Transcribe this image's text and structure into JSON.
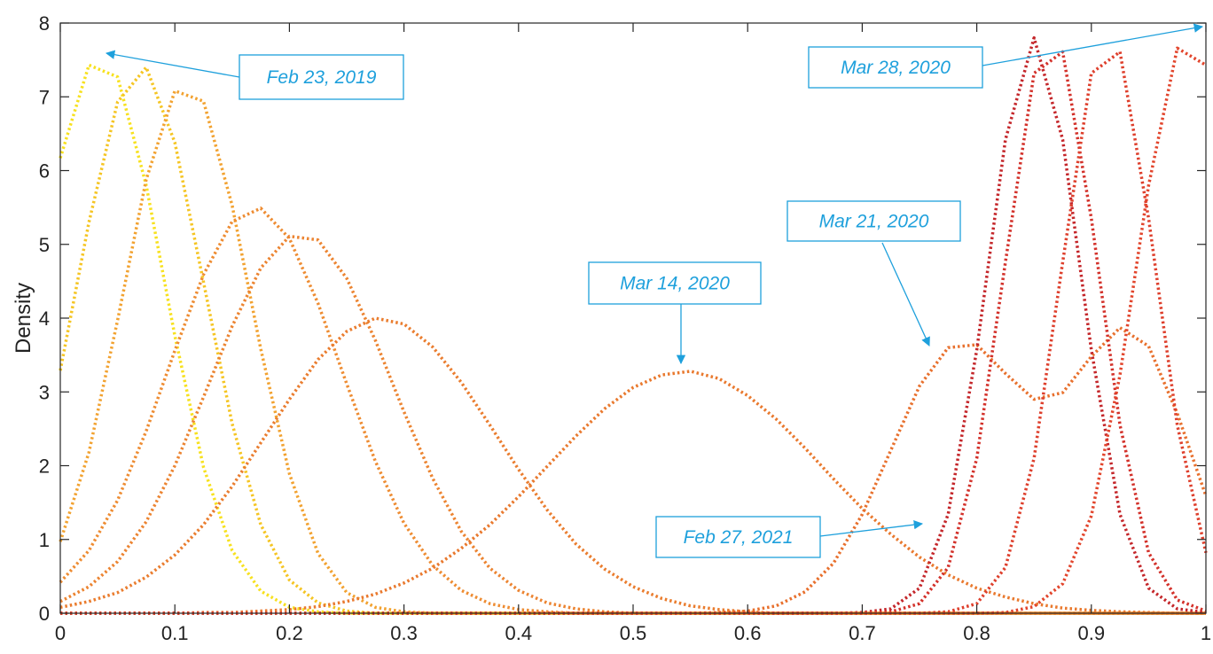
{
  "chart_data": {
    "type": "line",
    "ylabel": "Density",
    "x": [
      0,
      0.025,
      0.05,
      0.075,
      0.1,
      0.125,
      0.15,
      0.175,
      0.2,
      0.225,
      0.25,
      0.275,
      0.3,
      0.325,
      0.35,
      0.375,
      0.4,
      0.425,
      0.45,
      0.475,
      0.5,
      0.525,
      0.55,
      0.575,
      0.6,
      0.625,
      0.65,
      0.675,
      0.7,
      0.725,
      0.75,
      0.775,
      0.8,
      0.825,
      0.85,
      0.875,
      0.9,
      0.925,
      0.95,
      0.975,
      1
    ],
    "xlim": [
      0,
      1
    ],
    "ylim": [
      0,
      8
    ],
    "xticks": [
      0,
      0.1,
      0.2,
      0.3,
      0.4,
      0.5,
      0.6,
      0.7,
      0.8,
      0.9,
      1
    ],
    "yticks": [
      0,
      1,
      2,
      3,
      4,
      5,
      6,
      7,
      8
    ],
    "series": [
      {
        "color": "#f7e11e",
        "values": [
          6.17,
          7.43,
          7.27,
          5.8,
          3.76,
          1.98,
          0.85,
          0.3,
          0.08,
          0.02,
          0,
          0,
          0,
          0,
          0,
          0,
          0,
          0,
          0,
          0,
          0,
          0,
          0,
          0,
          0,
          0,
          0,
          0,
          0,
          0,
          0,
          0,
          0,
          0,
          0,
          0,
          0,
          0,
          0,
          0,
          0
        ]
      },
      {
        "color": "#f5c523",
        "values": [
          3.29,
          5.3,
          6.93,
          7.4,
          6.38,
          4.49,
          2.57,
          1.2,
          0.45,
          0.14,
          0.03,
          0,
          0,
          0,
          0,
          0,
          0,
          0,
          0,
          0,
          0,
          0,
          0,
          0,
          0,
          0,
          0,
          0,
          0,
          0,
          0,
          0,
          0,
          0,
          0,
          0,
          0,
          0,
          0,
          0,
          0
        ]
      },
      {
        "color": "#f2a230",
        "values": [
          0.97,
          2.18,
          3.97,
          5.88,
          7.08,
          6.94,
          5.53,
          3.58,
          1.89,
          0.81,
          0.28,
          0.08,
          0.02,
          0,
          0,
          0,
          0,
          0,
          0,
          0,
          0,
          0,
          0,
          0,
          0,
          0,
          0,
          0,
          0,
          0,
          0,
          0,
          0,
          0,
          0,
          0,
          0,
          0,
          0,
          0,
          0
        ]
      },
      {
        "color": "#ee8c32",
        "values": [
          0.42,
          0.85,
          1.53,
          2.47,
          3.56,
          4.59,
          5.31,
          5.49,
          5.08,
          4.2,
          3.11,
          2.06,
          1.22,
          0.65,
          0.31,
          0.13,
          0.05,
          0.02,
          0,
          0,
          0,
          0,
          0,
          0,
          0,
          0,
          0,
          0,
          0,
          0,
          0,
          0,
          0,
          0,
          0,
          0,
          0,
          0,
          0,
          0,
          0
        ]
      },
      {
        "color": "#ec8431",
        "values": [
          0.16,
          0.36,
          0.7,
          1.24,
          2.0,
          2.93,
          3.89,
          4.68,
          5.11,
          5.06,
          4.54,
          3.7,
          2.73,
          1.83,
          1.11,
          0.61,
          0.31,
          0.14,
          0.06,
          0.02,
          0,
          0,
          0,
          0,
          0,
          0,
          0,
          0,
          0,
          0,
          0,
          0,
          0,
          0,
          0,
          0,
          0,
          0,
          0,
          0,
          0
        ]
      },
      {
        "color": "#ea7d2f",
        "values": [
          0.08,
          0.16,
          0.28,
          0.49,
          0.79,
          1.2,
          1.72,
          2.31,
          2.9,
          3.44,
          3.82,
          4.0,
          3.92,
          3.61,
          3.13,
          2.55,
          1.95,
          1.4,
          0.94,
          0.6,
          0.36,
          0.2,
          0.1,
          0.05,
          0.02,
          0,
          0,
          0,
          0,
          0,
          0,
          0,
          0,
          0,
          0,
          0,
          0,
          0,
          0,
          0,
          0
        ]
      },
      {
        "color": "#e9792e",
        "values": [
          0,
          0,
          0,
          0,
          0,
          0.01,
          0.01,
          0.03,
          0.05,
          0.09,
          0.16,
          0.26,
          0.41,
          0.61,
          0.88,
          1.2,
          1.58,
          1.99,
          2.4,
          2.77,
          3.06,
          3.23,
          3.28,
          3.18,
          2.95,
          2.63,
          2.24,
          1.82,
          1.42,
          1.07,
          0.76,
          0.52,
          0.34,
          0.22,
          0.13,
          0.07,
          0.04,
          0.02,
          0.01,
          0,
          0
        ]
      },
      {
        "color": "#e8702d",
        "values": [
          0,
          0,
          0,
          0,
          0,
          0,
          0,
          0,
          0,
          0,
          0,
          0,
          0,
          0,
          0,
          0,
          0,
          0,
          0,
          0,
          0,
          0,
          0,
          0.01,
          0.03,
          0.1,
          0.29,
          0.68,
          1.34,
          2.21,
          3.08,
          3.6,
          3.64,
          3.25,
          2.9,
          2.99,
          3.48,
          3.87,
          3.62,
          2.71,
          1.59
        ]
      },
      {
        "color": "#c4262a",
        "values": [
          0,
          0,
          0,
          0,
          0,
          0,
          0,
          0,
          0,
          0,
          0,
          0,
          0,
          0,
          0,
          0,
          0,
          0,
          0,
          0,
          0,
          0,
          0,
          0,
          0,
          0,
          0,
          0,
          0.01,
          0.06,
          0.34,
          1.34,
          3.57,
          6.42,
          7.8,
          6.42,
          3.57,
          1.34,
          0.34,
          0.06,
          0.01
        ]
      },
      {
        "color": "#d3312a",
        "values": [
          0,
          0,
          0,
          0,
          0,
          0,
          0,
          0,
          0,
          0,
          0,
          0,
          0,
          0,
          0,
          0,
          0,
          0,
          0,
          0,
          0,
          0,
          0,
          0,
          0,
          0,
          0,
          0,
          0,
          0.02,
          0.13,
          0.62,
          2.1,
          4.76,
          7.32,
          7.61,
          5.35,
          2.55,
          0.82,
          0.18,
          0.03
        ]
      },
      {
        "color": "#de3f2c",
        "values": [
          0,
          0,
          0,
          0,
          0,
          0,
          0,
          0,
          0,
          0,
          0,
          0,
          0,
          0,
          0,
          0,
          0,
          0,
          0,
          0,
          0,
          0,
          0,
          0,
          0,
          0,
          0,
          0,
          0,
          0,
          0,
          0.02,
          0.13,
          0.62,
          2.1,
          4.76,
          7.32,
          7.61,
          5.35,
          2.55,
          0.82
        ]
      },
      {
        "color": "#e2452c",
        "values": [
          0,
          0,
          0,
          0,
          0,
          0,
          0,
          0,
          0,
          0,
          0,
          0,
          0,
          0,
          0,
          0,
          0,
          0,
          0,
          0,
          0,
          0,
          0,
          0,
          0,
          0,
          0,
          0,
          0,
          0,
          0,
          0,
          0,
          0.01,
          0.09,
          0.4,
          1.32,
          3.23,
          5.8,
          7.66,
          7.43
        ]
      }
    ],
    "annotations": [
      "Feb 23, 2019",
      "Mar 28, 2020",
      "Mar 21, 2020",
      "Mar 14, 2020",
      "Feb 27, 2021"
    ],
    "annotation_color": "#1ea0dc"
  }
}
